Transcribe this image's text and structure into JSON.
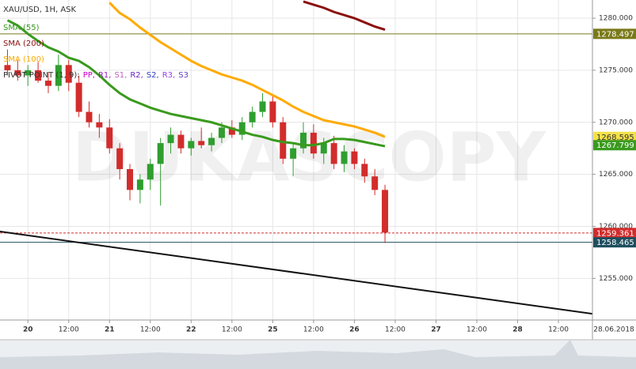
{
  "chart_data": {
    "type": "candlestick",
    "title": "XAU/USD, 1H, ASK",
    "watermark": "DUKASCOPY",
    "date_label": "28.06.2018",
    "xlim": [
      -8.2,
      166
    ],
    "ylim": [
      1251,
      1281.75
    ],
    "xticks": [
      {
        "value": 0,
        "label": "20"
      },
      {
        "value": 12,
        "label": "12:00"
      },
      {
        "value": 24,
        "label": "21"
      },
      {
        "value": 36,
        "label": "12:00"
      },
      {
        "value": 48,
        "label": "22"
      },
      {
        "value": 60,
        "label": "12:00"
      },
      {
        "value": 72,
        "label": "25"
      },
      {
        "value": 84,
        "label": "12:00"
      },
      {
        "value": 96,
        "label": "26"
      },
      {
        "value": 108,
        "label": "12:00"
      },
      {
        "value": 120,
        "label": "27"
      },
      {
        "value": 132,
        "label": "12:00"
      },
      {
        "value": 144,
        "label": "28"
      },
      {
        "value": 156,
        "label": "12:00"
      }
    ],
    "yticks": [
      {
        "value": 1255,
        "label": "1255.000"
      },
      {
        "value": 1260,
        "label": "1260.000"
      },
      {
        "value": 1265,
        "label": "1265.000"
      },
      {
        "value": 1270,
        "label": "1270.000"
      },
      {
        "value": 1275,
        "label": "1275.000"
      },
      {
        "value": 1280,
        "label": "1280.000"
      }
    ],
    "grid": true,
    "up_color": "#2f9e2f",
    "down_color": "#d22c2c",
    "x": [
      -6,
      -3,
      0,
      3,
      6,
      9,
      12,
      15,
      18,
      21,
      24,
      27,
      30,
      33,
      36,
      39,
      42,
      45,
      48,
      51,
      54,
      57,
      60,
      63,
      66,
      69,
      72,
      75,
      78,
      81,
      84,
      87,
      90,
      93,
      96,
      99,
      102,
      105
    ],
    "open": [
      1275.5,
      1275,
      1274.5,
      1275,
      1274,
      1273.5,
      1275.5,
      1273.8,
      1271,
      1270,
      1269.5,
      1267.5,
      1265.5,
      1263.5,
      1264.5,
      1266,
      1268,
      1268.8,
      1267.5,
      1268.2,
      1267.8,
      1268.5,
      1269.5,
      1268.8,
      1270,
      1271,
      1272,
      1270,
      1266.5,
      1267.5,
      1269,
      1267,
      1268,
      1266,
      1267.2,
      1266,
      1264.8,
      1263.5
    ],
    "high": [
      1277,
      1276,
      1275.5,
      1275.8,
      1274.8,
      1276.5,
      1276,
      1274.5,
      1272,
      1270.8,
      1270.3,
      1268,
      1266,
      1265,
      1266.5,
      1268.5,
      1269.5,
      1269.2,
      1268.5,
      1269.5,
      1269,
      1270,
      1270.2,
      1270.5,
      1271.5,
      1272.8,
      1272.5,
      1270.5,
      1268,
      1270,
      1269.8,
      1268.5,
      1268.7,
      1267.8,
      1267.5,
      1266.5,
      1265.5,
      1264
    ],
    "low": [
      1274.5,
      1274,
      1273.5,
      1273.8,
      1272.8,
      1273,
      1273,
      1270.5,
      1269.5,
      1268.5,
      1267,
      1264.5,
      1262.5,
      1262.2,
      1263.5,
      1262,
      1267,
      1267,
      1266.8,
      1267.5,
      1267.2,
      1268,
      1268.5,
      1268.3,
      1269.5,
      1270.5,
      1269.5,
      1266,
      1264.8,
      1267,
      1266.5,
      1266,
      1265.5,
      1265.2,
      1265.5,
      1264.2,
      1263,
      1258.4
    ],
    "close": [
      1275,
      1274.5,
      1275,
      1274,
      1273.5,
      1275.5,
      1273.8,
      1271,
      1270,
      1269.5,
      1267.5,
      1265.5,
      1263.5,
      1264.5,
      1266,
      1268,
      1268.8,
      1267.5,
      1268.2,
      1267.8,
      1268.5,
      1269.5,
      1268.8,
      1270,
      1271,
      1272,
      1270,
      1266.5,
      1267.5,
      1269,
      1267,
      1268,
      1266,
      1267.2,
      1266,
      1264.8,
      1263.5,
      1259.4
    ],
    "series": [
      {
        "name": "SMA (55)",
        "color": "#3a9a1e",
        "values": [
          1279.8,
          1279.3,
          1278.5,
          1277.8,
          1277.2,
          1276.8,
          1276.2,
          1275.9,
          1275.3,
          1274.5,
          1273.6,
          1272.8,
          1272.2,
          1271.8,
          1271.4,
          1271.1,
          1270.8,
          1270.6,
          1270.4,
          1270.2,
          1270,
          1269.7,
          1269.4,
          1269.1,
          1268.8,
          1268.6,
          1268.3,
          1268.1,
          1268,
          1267.8,
          1267.8,
          1268,
          1268.4,
          1268.4,
          1268.3,
          1268.1,
          1267.9,
          1267.7
        ]
      },
      {
        "name": "SMA (200)",
        "color": "#8b1010",
        "values": [
          null,
          null,
          null,
          null,
          null,
          null,
          null,
          null,
          null,
          null,
          null,
          null,
          null,
          null,
          null,
          null,
          null,
          null,
          null,
          null,
          null,
          null,
          null,
          null,
          null,
          null,
          null,
          null,
          null,
          1281.6,
          1281.3,
          1281,
          1280.6,
          1280.3,
          1280,
          1279.6,
          1279.2,
          1278.9
        ]
      },
      {
        "name": "SMA (100)",
        "color": "#ffaa00",
        "values": [
          null,
          null,
          null,
          null,
          null,
          null,
          null,
          null,
          null,
          null,
          1281.5,
          1280.5,
          1279.9,
          1279.1,
          1278.4,
          1277.7,
          1277.1,
          1276.5,
          1275.9,
          1275.4,
          1275,
          1274.6,
          1274.3,
          1274,
          1273.6,
          1273.1,
          1272.6,
          1272.1,
          1271.5,
          1271,
          1270.6,
          1270.2,
          1270,
          1269.8,
          1269.6,
          1269.3,
          1269,
          1268.6
        ]
      }
    ],
    "pivot": {
      "label": "PIVOT POINT (1, 9):",
      "items": [
        {
          "name": "PP,",
          "color": "#cc00cc"
        },
        {
          "name": "R1,",
          "color": "#9a1fc9"
        },
        {
          "name": "S1,",
          "color": "#c060c0"
        },
        {
          "name": "R2,",
          "color": "#6a1fc9"
        },
        {
          "name": "S2,",
          "color": "#3340c8"
        },
        {
          "name": "R3,",
          "color": "#9a40f0"
        },
        {
          "name": "S3",
          "color": "#6040c8"
        }
      ]
    },
    "trendline": {
      "x": [
        -8.2,
        166
      ],
      "y": [
        1259.5,
        1251.6
      ],
      "color": "#111111"
    },
    "price_tags": [
      {
        "value": 1278.497,
        "color": "#7a7a1a",
        "text_color": "#ffffff",
        "line": "solid"
      },
      {
        "value": 1268.595,
        "color": "#f2e14a",
        "text_color": "#333333",
        "line": "none"
      },
      {
        "value": 1267.799,
        "color": "#3a9a1e",
        "text_color": "#ffffff",
        "line": "none"
      },
      {
        "value": 1259.361,
        "color": "#d22c2c",
        "text_color": "#ffffff",
        "line": "dashed"
      },
      {
        "value": 1258.465,
        "color": "#1f4f5f",
        "text_color": "#ffffff",
        "line": "solid"
      }
    ]
  }
}
